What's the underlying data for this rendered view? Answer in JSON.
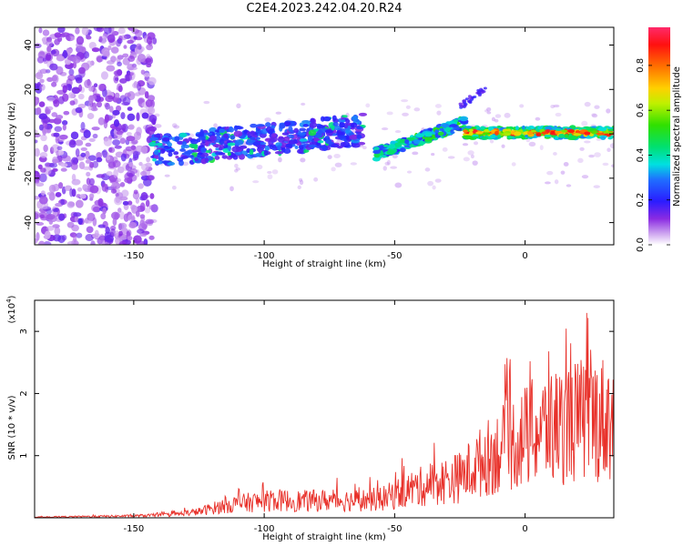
{
  "figure_title": "C2E4.2023.242.04.20.R24",
  "chart_data": [
    {
      "type": "heatmap",
      "title": "",
      "xlabel": "Height of straight line (km)",
      "ylabel": "Frequency (Hz)",
      "xlim": [
        -188,
        34
      ],
      "ylim": [
        -50,
        48
      ],
      "x_ticks": [
        "-150",
        "-100",
        "-50",
        "0"
      ],
      "y_ticks": [
        "40",
        "20",
        "0",
        "-20",
        "-40"
      ],
      "colorbar": {
        "label": "Normalized spectral amplitude",
        "ticks": [
          "0.0",
          "0.2",
          "0.4",
          "0.6",
          "0.8"
        ],
        "range": [
          0,
          0.97
        ]
      },
      "features": [
        {
          "x_range": [
            -188,
            -142
          ],
          "y_range": [
            -50,
            48
          ],
          "amplitude": 0.1,
          "kind": "diffuse noise"
        },
        {
          "x_range": [
            -143,
            -62
          ],
          "y_range": [
            -13,
            7
          ],
          "amplitude": 0.3,
          "kind": "broad band"
        },
        {
          "x_range": [
            -57,
            -23
          ],
          "y_range": [
            -10,
            7
          ],
          "amplitude": 0.4,
          "kind": "rising band"
        },
        {
          "x_range": [
            -23,
            34
          ],
          "y_range": [
            -2,
            4
          ],
          "amplitude": 0.85,
          "kind": "strong band"
        }
      ]
    },
    {
      "type": "line",
      "title": "",
      "xlabel": "Height of straight line (km)",
      "ylabel": "SNR (10 * v/v)",
      "y_multiplier": "(x10",
      "y_exponent": "4",
      "y_multiplier_close": ")",
      "xlim": [
        -188,
        34
      ],
      "ylim": [
        0,
        3.5
      ],
      "x_ticks": [
        "-150",
        "-100",
        "-50",
        "0"
      ],
      "y_ticks": [
        "1",
        "2",
        "3"
      ],
      "color": "#e8312a",
      "series": [
        {
          "x": [
            -188,
            -170,
            -150,
            -135,
            -125,
            -115,
            -105,
            -95,
            -85,
            -75,
            -65,
            -55,
            -45,
            -35,
            -25,
            -15,
            -5,
            5,
            15,
            25,
            34
          ],
          "y": [
            0.01,
            0.02,
            0.03,
            0.05,
            0.1,
            0.2,
            0.25,
            0.28,
            0.27,
            0.28,
            0.28,
            0.3,
            0.45,
            0.55,
            0.65,
            0.95,
            1.2,
            1.4,
            1.5,
            1.6,
            1.6
          ]
        }
      ]
    }
  ]
}
